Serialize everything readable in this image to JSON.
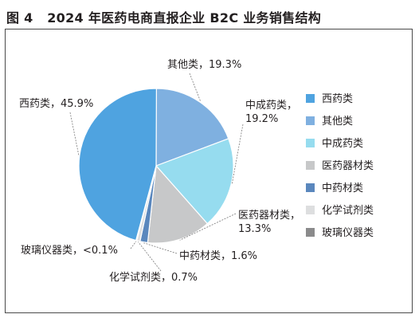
{
  "figure": {
    "number": "图 4",
    "title": "2024 年医药电商直报企业 B2C 业务销售结构"
  },
  "chart_data": {
    "type": "pie",
    "slices": [
      {
        "name": "西药类",
        "value": 45.9,
        "label": "西药类，45.9%",
        "color": "#4fa3e0"
      },
      {
        "name": "其他类",
        "value": 19.3,
        "label": "其他类，19.3%",
        "color": "#7fb0e0"
      },
      {
        "name": "中成药类",
        "value": 19.2,
        "label_lines": [
          "中成药类，",
          "19.2%"
        ],
        "color": "#96dcef"
      },
      {
        "name": "医药器材类",
        "value": 13.3,
        "label_lines": [
          "医药器材类，",
          "13.3%"
        ],
        "color": "#c7c8c9"
      },
      {
        "name": "中药材类",
        "value": 1.6,
        "label": "中药材类，1.6%",
        "color": "#5a87bd"
      },
      {
        "name": "化学试剂类",
        "value": 0.7,
        "label": "化学试剂类，0.7%",
        "color": "#dddedf"
      },
      {
        "name": "玻璃仪器类",
        "value": 0.1,
        "label": "玻璃仪器类，<0.1%",
        "color": "#8a8a8b"
      }
    ],
    "legend_position": "right"
  }
}
